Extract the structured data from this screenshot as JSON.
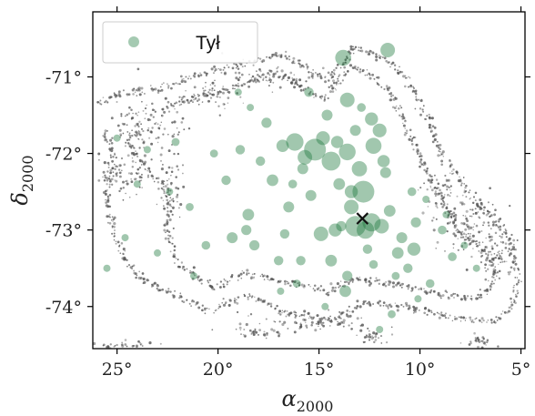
{
  "chart_data": {
    "type": "scatter",
    "title": "",
    "xlabel": {
      "symbol": "α",
      "sub": "2000"
    },
    "ylabel": {
      "symbol": "δ",
      "sub": "2000"
    },
    "xlim": [
      26.2,
      4.8
    ],
    "ylim": [
      -74.55,
      -70.15
    ],
    "x_ticks": [
      {
        "value": 25,
        "label": "25°"
      },
      {
        "value": 20,
        "label": "20°"
      },
      {
        "value": 15,
        "label": "15°"
      },
      {
        "value": 10,
        "label": "10°"
      },
      {
        "value": 5,
        "label": "5°"
      }
    ],
    "y_ticks": [
      {
        "value": -71,
        "label": "-71°"
      },
      {
        "value": -72,
        "label": "-72°"
      },
      {
        "value": -73,
        "label": "-73°"
      },
      {
        "value": -74,
        "label": "-74°"
      }
    ],
    "grid": false,
    "legend": {
      "placement": "top-left",
      "entries": [
        "Tył"
      ]
    },
    "series": [
      {
        "name": "Tył",
        "color": "#1f7a3f",
        "marker": "circle",
        "points": [
          [
            15.2,
            -71.95,
            3.0
          ],
          [
            14.4,
            -72.1,
            2.6
          ],
          [
            12.8,
            -72.5,
            3.0
          ],
          [
            13.2,
            -72.95,
            2.8
          ],
          [
            12.4,
            -72.9,
            2.5
          ],
          [
            16.2,
            -71.85,
            2.4
          ],
          [
            13.6,
            -71.98,
            2.3
          ],
          [
            12.3,
            -71.9,
            2.2
          ],
          [
            15.7,
            -72.05,
            2.0
          ],
          [
            14.8,
            -71.8,
            1.9
          ],
          [
            13.0,
            -72.2,
            2.1
          ],
          [
            12.7,
            -73.0,
            2.4
          ],
          [
            11.9,
            -72.95,
            2.0
          ],
          [
            13.4,
            -72.7,
            2.0
          ],
          [
            12.0,
            -71.7,
            1.9
          ],
          [
            14.0,
            -72.4,
            1.6
          ],
          [
            11.5,
            -72.75,
            1.6
          ],
          [
            10.3,
            -73.25,
            1.8
          ],
          [
            11.1,
            -73.3,
            1.6
          ],
          [
            13.8,
            -70.75,
            2.2
          ],
          [
            11.6,
            -70.65,
            2.0
          ],
          [
            13.6,
            -71.3,
            2.0
          ],
          [
            12.4,
            -71.55,
            1.8
          ],
          [
            16.8,
            -71.9,
            1.7
          ],
          [
            17.6,
            -71.6,
            1.4
          ],
          [
            17.3,
            -72.35,
            1.6
          ],
          [
            16.5,
            -72.7,
            1.5
          ],
          [
            19.3,
            -73.1,
            1.5
          ],
          [
            18.5,
            -72.8,
            1.6
          ],
          [
            15.4,
            -72.55,
            1.5
          ],
          [
            14.2,
            -73.0,
            1.8
          ],
          [
            14.9,
            -73.05,
            2.0
          ],
          [
            13.6,
            -73.6,
            1.4
          ],
          [
            10.9,
            -73.1,
            1.5
          ],
          [
            10.6,
            -73.5,
            1.3
          ],
          [
            18.6,
            -73.0,
            1.4
          ],
          [
            18.2,
            -73.2,
            1.4
          ],
          [
            16.7,
            -73.05,
            1.3
          ],
          [
            15.9,
            -73.4,
            1.3
          ],
          [
            14.4,
            -73.4,
            1.6
          ],
          [
            13.7,
            -73.8,
            1.6
          ],
          [
            10.2,
            -72.9,
            1.4
          ],
          [
            8.9,
            -73.0,
            1.2
          ],
          [
            8.4,
            -73.35,
            1.2
          ],
          [
            20.6,
            -73.2,
            1.2
          ],
          [
            21.4,
            -72.7,
            1.1
          ],
          [
            19.6,
            -72.35,
            1.3
          ],
          [
            18.9,
            -71.95,
            1.3
          ],
          [
            15.5,
            -71.2,
            1.3
          ],
          [
            14.6,
            -71.5,
            1.5
          ],
          [
            13.4,
            -72.5,
            1.8
          ],
          [
            11.7,
            -72.25,
            1.5
          ],
          [
            17.9,
            -72.1,
            1.3
          ],
          [
            12.3,
            -73.45,
            1.2
          ],
          [
            10.4,
            -72.5,
            1.2
          ],
          [
            9.5,
            -73.7,
            1.2
          ],
          [
            11.2,
            -73.6,
            1.1
          ],
          [
            15.8,
            -72.2,
            1.5
          ],
          [
            14.1,
            -71.85,
            1.7
          ],
          [
            13.2,
            -71.7,
            1.5
          ],
          [
            12.9,
            -71.4,
            1.2
          ],
          [
            16.3,
            -72.4,
            1.2
          ],
          [
            20.2,
            -72.0,
            1.1
          ],
          [
            22.1,
            -71.85,
            1.1
          ],
          [
            23.5,
            -71.95,
            1.0
          ],
          [
            18.4,
            -71.4,
            1.0
          ],
          [
            19.0,
            -71.2,
            1.0
          ],
          [
            9.7,
            -72.6,
            1.0
          ],
          [
            8.7,
            -72.8,
            1.0
          ],
          [
            7.8,
            -73.2,
            1.0
          ],
          [
            7.2,
            -73.5,
            1.0
          ],
          [
            10.1,
            -73.9,
            1.0
          ],
          [
            11.4,
            -74.1,
            1.1
          ],
          [
            14.7,
            -74.0,
            1.0
          ],
          [
            16.9,
            -73.8,
            1.0
          ],
          [
            12.0,
            -74.3,
            1.0
          ],
          [
            21.2,
            -73.6,
            1.0
          ],
          [
            23.0,
            -73.3,
            1.0
          ],
          [
            24.6,
            -73.1,
            1.0
          ],
          [
            25.5,
            -73.5,
            1.0
          ],
          [
            22.4,
            -72.5,
            1.0
          ],
          [
            24.0,
            -72.4,
            1.0
          ],
          [
            25.0,
            -71.8,
            1.0
          ],
          [
            17.0,
            -73.4,
            1.3
          ],
          [
            16.1,
            -73.7,
            1.1
          ],
          [
            11.8,
            -72.1,
            1.7
          ],
          [
            13.9,
            -72.95,
            1.4
          ],
          [
            12.6,
            -73.25,
            1.3
          ]
        ]
      }
    ],
    "background_series": {
      "name": "",
      "color": "#555555",
      "marker": "dot",
      "contour_rings": [
        [
          [
            22.7,
            -71.4
          ],
          [
            20.2,
            -71.2
          ],
          [
            18.3,
            -71.05
          ],
          [
            17.1,
            -70.95
          ],
          [
            15.8,
            -71.15
          ],
          [
            14.7,
            -71.3
          ],
          [
            13.4,
            -70.85
          ],
          [
            12.3,
            -71.0
          ],
          [
            11.4,
            -71.2
          ],
          [
            10.8,
            -71.6
          ],
          [
            10.1,
            -72.0
          ],
          [
            9.5,
            -72.35
          ],
          [
            8.6,
            -72.75
          ],
          [
            7.9,
            -73.1
          ],
          [
            6.8,
            -73.25
          ],
          [
            6.2,
            -73.6
          ],
          [
            7.0,
            -73.9
          ],
          [
            9.0,
            -73.85
          ],
          [
            11.0,
            -73.7
          ],
          [
            13.2,
            -73.65
          ],
          [
            14.6,
            -73.8
          ],
          [
            16.5,
            -73.7
          ],
          [
            18.6,
            -73.55
          ],
          [
            20.1,
            -73.75
          ],
          [
            22.0,
            -73.45
          ],
          [
            22.6,
            -73.0
          ],
          [
            22.2,
            -72.6
          ],
          [
            23.6,
            -72.2
          ],
          [
            24.4,
            -71.85
          ],
          [
            23.8,
            -71.6
          ]
        ],
        [
          [
            26.0,
            -71.35
          ],
          [
            24.6,
            -71.2
          ],
          [
            22.8,
            -71.15
          ],
          [
            21.4,
            -71.0
          ],
          [
            19.8,
            -70.9
          ],
          [
            18.2,
            -70.8
          ],
          [
            16.9,
            -70.7
          ],
          [
            15.4,
            -70.9
          ],
          [
            14.5,
            -71.05
          ],
          [
            13.2,
            -70.6
          ],
          [
            11.8,
            -70.75
          ],
          [
            10.6,
            -71.05
          ],
          [
            9.7,
            -71.5
          ],
          [
            8.9,
            -72.0
          ],
          [
            7.8,
            -72.45
          ],
          [
            6.6,
            -72.8
          ],
          [
            5.6,
            -73.1
          ],
          [
            5.1,
            -73.6
          ],
          [
            5.4,
            -74.0
          ],
          [
            6.4,
            -74.2
          ],
          [
            8.4,
            -74.15
          ],
          [
            10.6,
            -74.0
          ],
          [
            12.8,
            -73.95
          ],
          [
            14.3,
            -74.2
          ],
          [
            16.3,
            -74.1
          ],
          [
            18.5,
            -73.85
          ],
          [
            20.4,
            -74.05
          ],
          [
            22.6,
            -73.8
          ],
          [
            24.2,
            -73.55
          ],
          [
            25.1,
            -73.1
          ],
          [
            25.5,
            -72.6
          ],
          [
            25.2,
            -72.1
          ],
          [
            25.6,
            -71.7
          ]
        ]
      ],
      "scatter_regions": [
        {
          "center": [
            23.6,
            -71.65
          ],
          "spread": [
            1.6,
            0.35
          ],
          "count": 130
        },
        {
          "center": [
            24.6,
            -72.25
          ],
          "spread": [
            1.0,
            0.3
          ],
          "count": 70
        },
        {
          "center": [
            22.3,
            -72.45
          ],
          "spread": [
            0.5,
            0.3
          ],
          "count": 50
        },
        {
          "center": [
            7.4,
            -72.95
          ],
          "spread": [
            1.3,
            0.35
          ],
          "count": 120
        },
        {
          "center": [
            6.2,
            -73.35
          ],
          "spread": [
            0.8,
            0.25
          ],
          "count": 70
        },
        {
          "center": [
            9.0,
            -72.55
          ],
          "spread": [
            0.8,
            0.3
          ],
          "count": 60
        },
        {
          "center": [
            15.5,
            -74.2
          ],
          "spread": [
            2.5,
            0.1
          ],
          "count": 80
        },
        {
          "center": [
            12.4,
            -74.4
          ],
          "spread": [
            0.7,
            0.08
          ],
          "count": 30
        },
        {
          "center": [
            7.0,
            -74.45
          ],
          "spread": [
            0.6,
            0.06
          ],
          "count": 30
        },
        {
          "center": [
            24.5,
            -74.5
          ],
          "spread": [
            1.2,
            0.05
          ],
          "count": 30
        },
        {
          "center": [
            18.0,
            -74.35
          ],
          "spread": [
            1.0,
            0.07
          ],
          "count": 30
        },
        {
          "center": [
            17.5,
            -71.0
          ],
          "spread": [
            2.0,
            0.12
          ],
          "count": 60
        },
        {
          "center": [
            20.2,
            -71.25
          ],
          "spread": [
            1.2,
            0.15
          ],
          "count": 50
        }
      ]
    },
    "marker_cross": {
      "label": "",
      "x": 12.85,
      "y": -72.85,
      "color": "#111111"
    }
  }
}
